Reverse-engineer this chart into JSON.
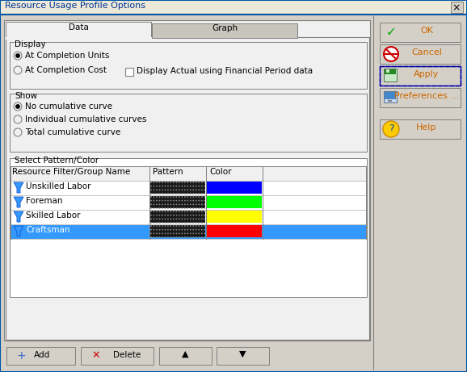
{
  "title": "Resource Usage Profile Options",
  "bg_color": "#d4d0c8",
  "white": "#ffffff",
  "light_gray": "#f0f0f0",
  "tab_active": "Data",
  "tab_inactive": "Graph",
  "display_label": "Display",
  "radio_display": [
    "At Completion Units",
    "At Completion Cost"
  ],
  "radio_display_selected": 0,
  "checkbox_label": "Display Actual using Financial Period data",
  "show_label": "Show",
  "radio_show": [
    "No cumulative curve",
    "Individual cumulative curves",
    "Total cumulative curve"
  ],
  "radio_show_selected": 0,
  "select_pattern_label": "Select Pattern/Color",
  "table_headers": [
    "Resource Filter/Group Name",
    "Pattern",
    "Color",
    ""
  ],
  "table_rows": [
    {
      "name": "Unskilled Labor",
      "color": "#0000ff"
    },
    {
      "name": "Foreman",
      "color": "#00ff00"
    },
    {
      "name": "Skilled Labor",
      "color": "#ffff00"
    },
    {
      "name": "Craftsman",
      "color": "#ff0000"
    }
  ],
  "selected_row": 3,
  "selected_row_bg": "#3399ff",
  "selected_row_text": "#ffffff",
  "btn_right_labels": [
    "OK",
    "Cancel",
    "Apply",
    "Preferences ...",
    "Help"
  ],
  "btn_bottom_labels": [
    "Add",
    "Delete"
  ],
  "border_color": "#808080",
  "border_dark": "#404040",
  "border_light": "#ffffff",
  "font_size": 7.5,
  "title_color": "#003399",
  "btn_text_color": "#cc6600"
}
